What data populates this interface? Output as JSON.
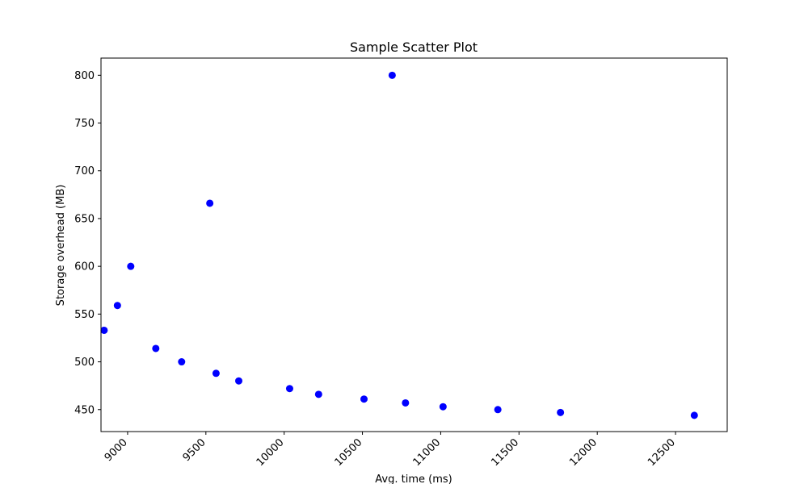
{
  "chart_data": {
    "type": "scatter",
    "title": "Sample Scatter Plot",
    "xlabel": "Avg. time (ms)",
    "ylabel": "Storage overhead (MB)",
    "xlim": [
      8830,
      12830
    ],
    "ylim": [
      427,
      818
    ],
    "x_ticks": [
      9000,
      9500,
      10000,
      10500,
      11000,
      11500,
      12000,
      12500
    ],
    "y_ticks": [
      450,
      500,
      550,
      600,
      650,
      700,
      750,
      800
    ],
    "x_tick_rotation": 45,
    "grid": false,
    "marker_color": "#0000ff",
    "points": [
      {
        "x": 8850,
        "y": 533
      },
      {
        "x": 8935,
        "y": 559
      },
      {
        "x": 9020,
        "y": 600
      },
      {
        "x": 9180,
        "y": 514
      },
      {
        "x": 9345,
        "y": 500
      },
      {
        "x": 9525,
        "y": 666
      },
      {
        "x": 9565,
        "y": 488
      },
      {
        "x": 9710,
        "y": 480
      },
      {
        "x": 10035,
        "y": 472
      },
      {
        "x": 10220,
        "y": 466
      },
      {
        "x": 10510,
        "y": 461
      },
      {
        "x": 10690,
        "y": 800
      },
      {
        "x": 10775,
        "y": 457
      },
      {
        "x": 11015,
        "y": 453
      },
      {
        "x": 11365,
        "y": 450
      },
      {
        "x": 11765,
        "y": 447
      },
      {
        "x": 12620,
        "y": 444
      }
    ]
  }
}
